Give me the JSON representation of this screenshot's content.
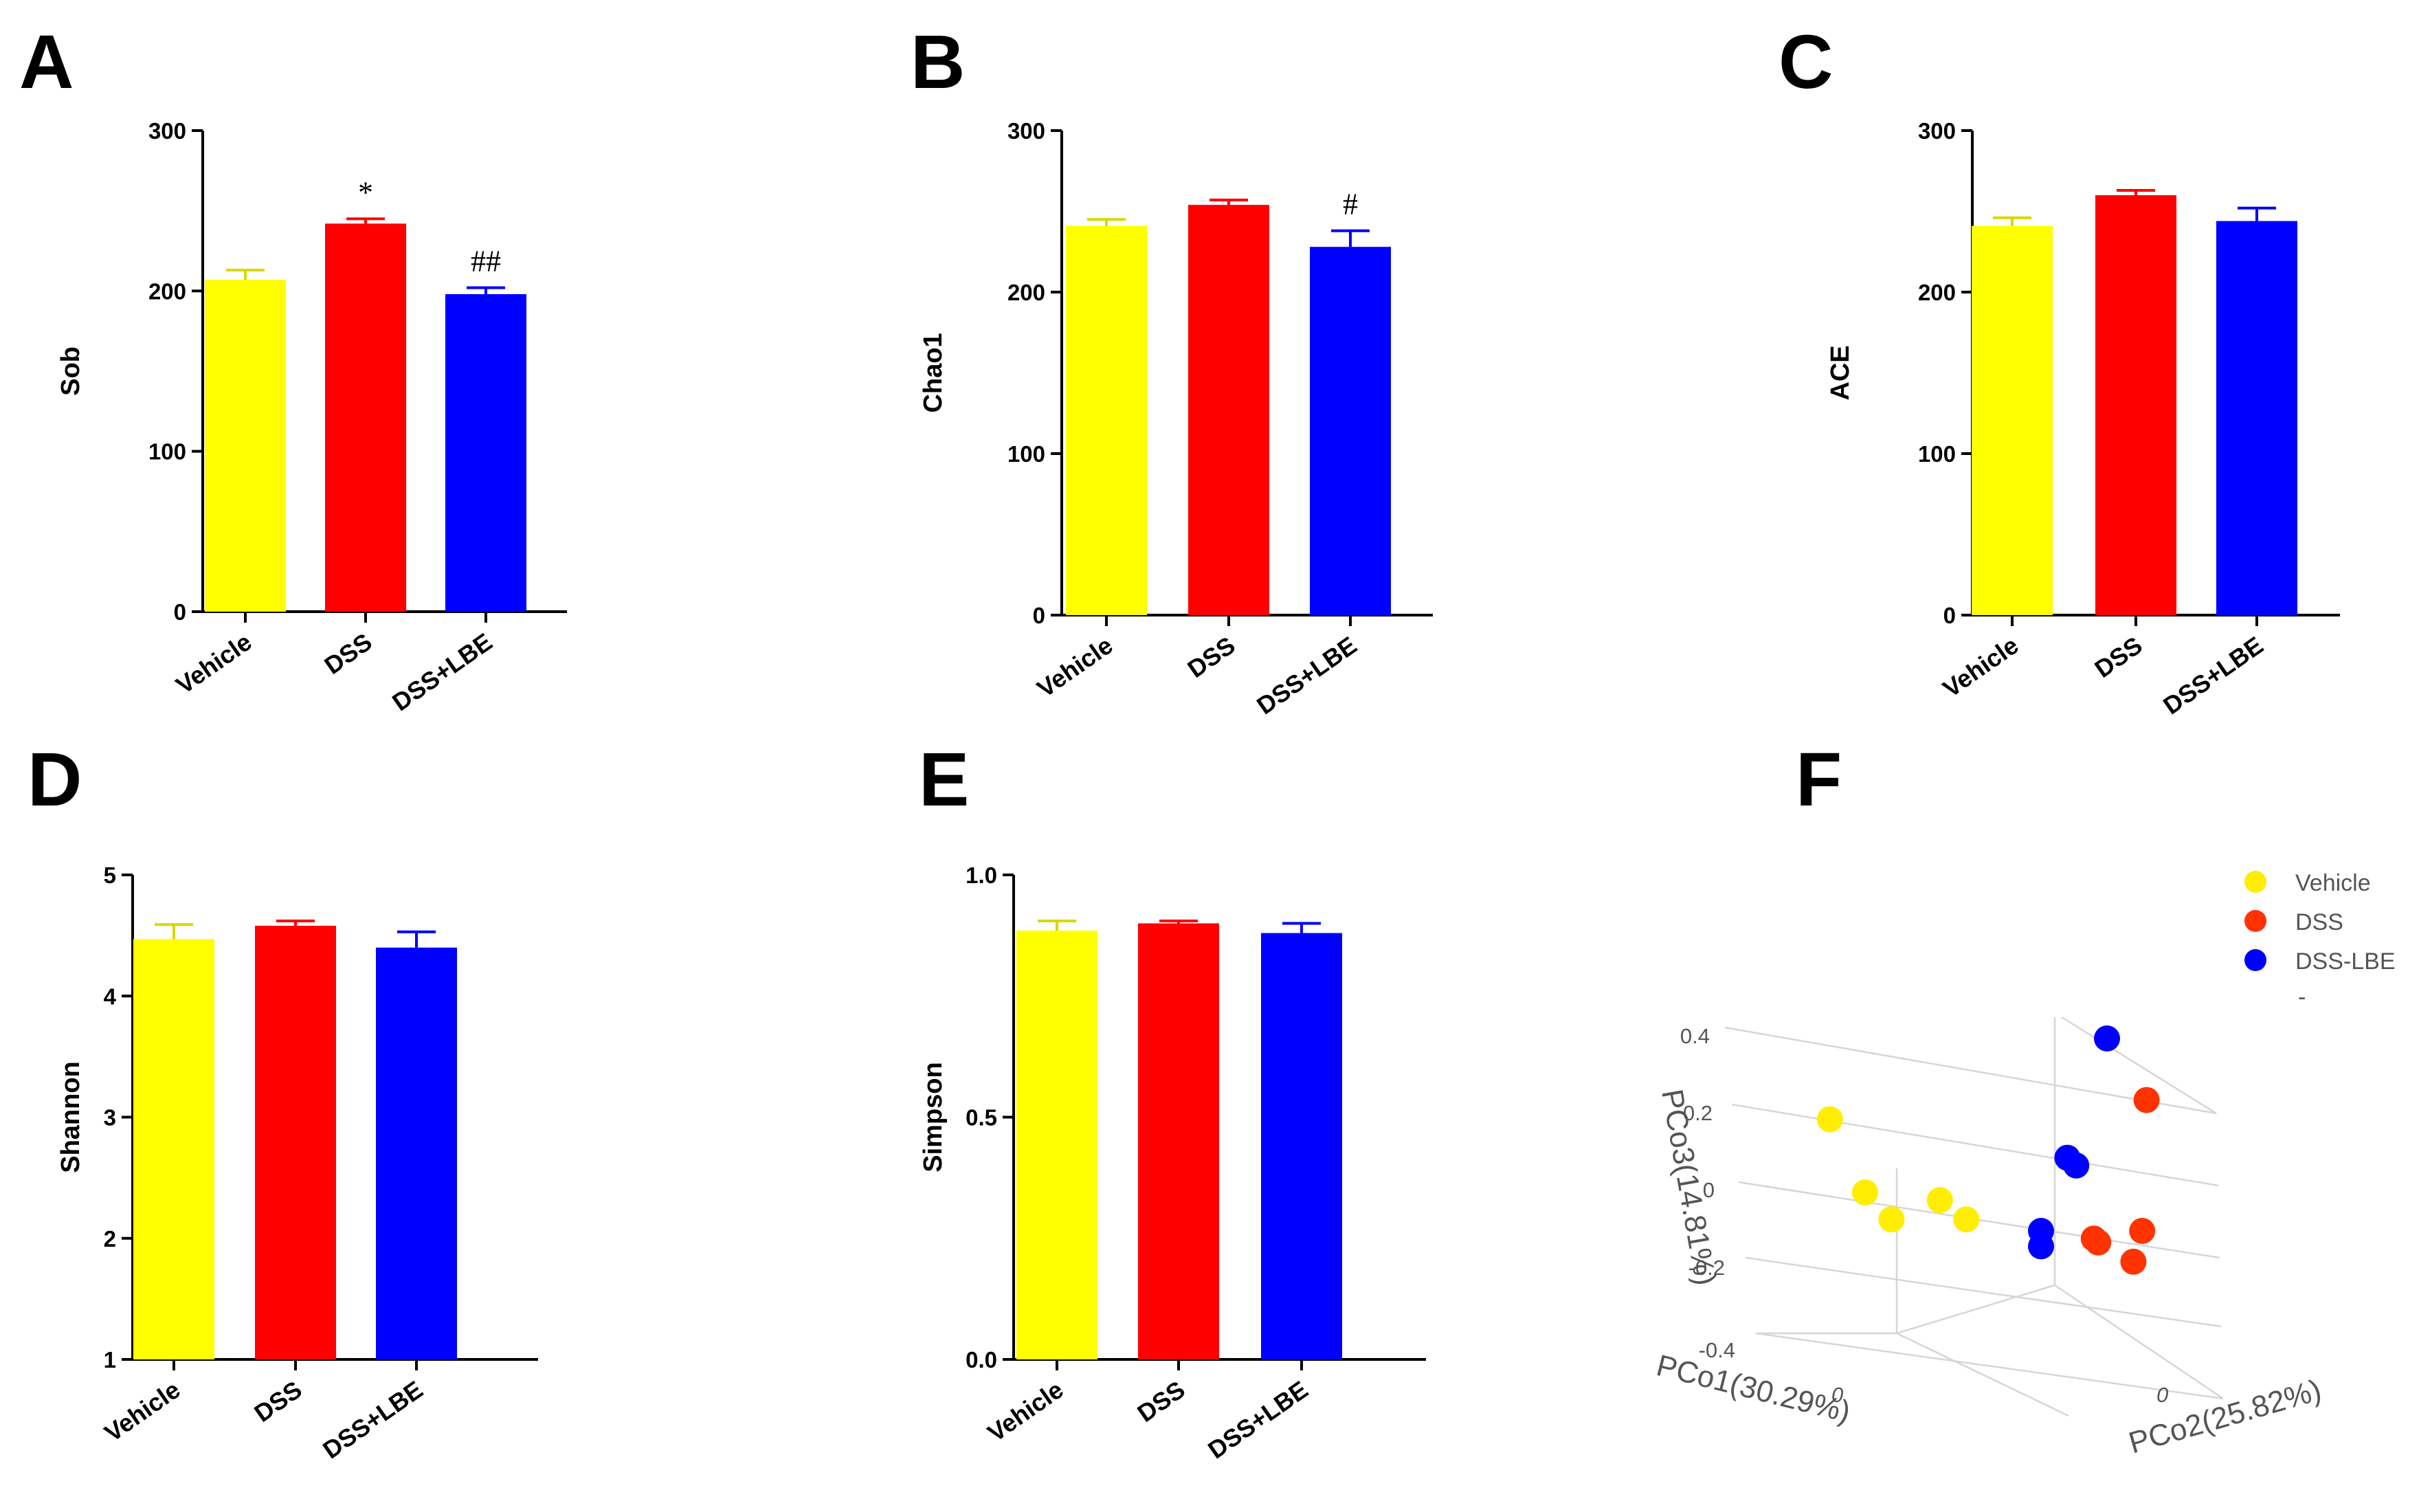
{
  "panels": {
    "A": "A",
    "B": "B",
    "C": "C",
    "D": "D",
    "E": "E",
    "F": "F"
  },
  "chart_data": [
    {
      "id": "A",
      "type": "bar",
      "ylabel": "Sob",
      "categories": [
        "Vehicle",
        "DSS",
        "DSS+LBE"
      ],
      "values": [
        207,
        242,
        198
      ],
      "errors": [
        6,
        3,
        4
      ],
      "significance": [
        "",
        "*",
        "##"
      ],
      "colors": [
        "#ffff00",
        "#ff0000",
        "#0000ff"
      ],
      "ylim": [
        0,
        300
      ],
      "yticks": [
        0,
        100,
        200,
        300
      ],
      "ytick_labels": [
        "0",
        "100",
        "200",
        "300"
      ]
    },
    {
      "id": "B",
      "type": "bar",
      "ylabel": "Chao1",
      "categories": [
        "Vehicle",
        "DSS",
        "DSS+LBE"
      ],
      "values": [
        241,
        254,
        228
      ],
      "errors": [
        4,
        3,
        10
      ],
      "significance": [
        "",
        "",
        "#"
      ],
      "colors": [
        "#ffff00",
        "#ff0000",
        "#0000ff"
      ],
      "ylim": [
        0,
        300
      ],
      "yticks": [
        0,
        100,
        200,
        300
      ],
      "ytick_labels": [
        "0",
        "100",
        "200",
        "300"
      ]
    },
    {
      "id": "C",
      "type": "bar",
      "ylabel": "ACE",
      "categories": [
        "Vehicle",
        "DSS",
        "DSS+LBE"
      ],
      "values": [
        241,
        260,
        244
      ],
      "errors": [
        5,
        3,
        8
      ],
      "significance": [
        "",
        "",
        ""
      ],
      "colors": [
        "#ffff00",
        "#ff0000",
        "#0000ff"
      ],
      "ylim": [
        0,
        300
      ],
      "yticks": [
        0,
        100,
        200,
        300
      ],
      "ytick_labels": [
        "0",
        "100",
        "200",
        "300"
      ]
    },
    {
      "id": "D",
      "type": "bar",
      "ylabel": "Shannon",
      "categories": [
        "Vehicle",
        "DSS",
        "DSS+LBE"
      ],
      "values": [
        4.47,
        4.58,
        4.4
      ],
      "errors": [
        0.12,
        0.04,
        0.13
      ],
      "significance": [
        "",
        "",
        ""
      ],
      "colors": [
        "#ffff00",
        "#ff0000",
        "#0000ff"
      ],
      "ylim": [
        1,
        5
      ],
      "yticks": [
        1,
        2,
        3,
        4,
        5
      ],
      "ytick_labels": [
        "1",
        "2",
        "3",
        "4",
        "5"
      ]
    },
    {
      "id": "E",
      "type": "bar",
      "ylabel": "Simpson",
      "categories": [
        "Vehicle",
        "DSS",
        "DSS+LBE"
      ],
      "values": [
        0.885,
        0.9,
        0.88
      ],
      "errors": [
        0.02,
        0.005,
        0.02
      ],
      "significance": [
        "",
        "",
        ""
      ],
      "colors": [
        "#ffff00",
        "#ff0000",
        "#0000ff"
      ],
      "ylim": [
        0,
        1
      ],
      "yticks": [
        0,
        0.5,
        1
      ],
      "ytick_labels": [
        "0.0",
        "0.5",
        "1.0"
      ]
    },
    {
      "id": "F",
      "type": "scatter",
      "projection": "3d",
      "xlabel": "PCo1(30.29%)",
      "ylabel": "PCo2(25.82%)",
      "zlabel": "PCo3(14.81%)",
      "z_ticks": [
        "0.4",
        "0.2",
        "0",
        "-0.2",
        "-0.4"
      ],
      "x_tick": "0",
      "y_tick": "0",
      "legend": {
        "position": "top-right",
        "entries": [
          {
            "label": "Vehicle",
            "color": "#ffee00"
          },
          {
            "label": "DSS",
            "color": "#ff3300"
          },
          {
            "label": "DSS-LBE",
            "color": "#0000ff"
          },
          {
            "label": "-",
            "color": ""
          }
        ]
      },
      "series": [
        {
          "name": "Vehicle",
          "color": "#ffee00",
          "points": [
            {
              "h": 0.02,
              "v": 0.19
            },
            {
              "h": 0.1,
              "v": 0.0
            },
            {
              "h": 0.16,
              "v": -0.07
            },
            {
              "h": 0.27,
              "v": -0.02
            },
            {
              "h": 0.33,
              "v": -0.07
            }
          ]
        },
        {
          "name": "DSS",
          "color": "#ff3300",
          "points": [
            {
              "h": 0.74,
              "v": 0.24
            },
            {
              "h": 0.62,
              "v": -0.12
            },
            {
              "h": 0.63,
              "v": -0.13
            },
            {
              "h": 0.73,
              "v": -0.1
            },
            {
              "h": 0.71,
              "v": -0.18
            }
          ]
        },
        {
          "name": "DSS-LBE",
          "color": "#0000ff",
          "points": [
            {
              "h": 0.65,
              "v": 0.4
            },
            {
              "h": 0.56,
              "v": 0.09
            },
            {
              "h": 0.58,
              "v": 0.07
            },
            {
              "h": 0.5,
              "v": -0.1
            },
            {
              "h": 0.5,
              "v": -0.14
            }
          ]
        }
      ]
    }
  ]
}
